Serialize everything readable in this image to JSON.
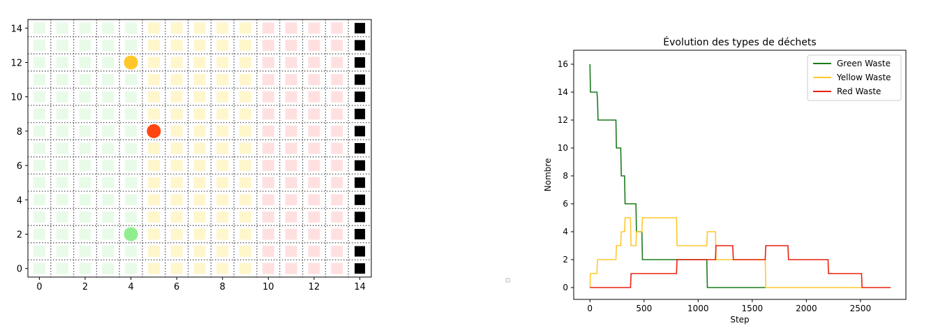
{
  "chart_data": [
    {
      "type": "scatter",
      "title": "",
      "xlabel": "",
      "ylabel": "",
      "xlim": [
        -0.5,
        14.5
      ],
      "ylim": [
        -0.5,
        14.5
      ],
      "xticks": [
        0,
        2,
        4,
        6,
        8,
        10,
        12,
        14
      ],
      "yticks": [
        0,
        2,
        4,
        6,
        8,
        10,
        12,
        14
      ],
      "grid": "dotted",
      "zones": [
        {
          "name": "green",
          "x_from": 0,
          "x_to": 4,
          "color": "#e8fbe8"
        },
        {
          "name": "yellow",
          "x_from": 5,
          "x_to": 9,
          "color": "#fff6cc"
        },
        {
          "name": "red",
          "x_from": 10,
          "x_to": 13,
          "color": "#ffe0e0"
        },
        {
          "name": "disposal",
          "x_from": 14,
          "x_to": 14,
          "color": "#000000"
        }
      ],
      "rows": 15,
      "agents": [
        {
          "x": 4,
          "y": 12,
          "color": "#ffc82a"
        },
        {
          "x": 5,
          "y": 8,
          "color": "#ff4512"
        },
        {
          "x": 4,
          "y": 2,
          "color": "#90ee90"
        }
      ]
    },
    {
      "type": "line",
      "title": "Évolution des types de déchets",
      "xlabel": "Step",
      "ylabel": "Nombre",
      "xlim": [
        -150,
        2920
      ],
      "ylim": [
        -0.85,
        17.0
      ],
      "xticks": [
        0,
        500,
        1000,
        1500,
        2000,
        2500
      ],
      "yticks": [
        0,
        2,
        4,
        6,
        8,
        10,
        12,
        14,
        16
      ],
      "legend": "top-right",
      "series": [
        {
          "name": "Green Waste",
          "color": "#1b7a1b",
          "step": true,
          "points": [
            [
              0,
              16
            ],
            [
              5,
              14
            ],
            [
              65,
              14
            ],
            [
              70,
              13.5
            ],
            [
              75,
              12
            ],
            [
              240,
              12
            ],
            [
              245,
              10
            ],
            [
              285,
              10
            ],
            [
              290,
              8
            ],
            [
              320,
              8
            ],
            [
              325,
              6
            ],
            [
              425,
              6
            ],
            [
              430,
              4
            ],
            [
              480,
              4
            ],
            [
              485,
              2
            ],
            [
              1080,
              2
            ],
            [
              1085,
              0
            ],
            [
              1620,
              0
            ]
          ]
        },
        {
          "name": "Yellow Waste",
          "color": "#ffc82a",
          "step": true,
          "points": [
            [
              0,
              0
            ],
            [
              5,
              1
            ],
            [
              65,
              1
            ],
            [
              70,
              2
            ],
            [
              240,
              2
            ],
            [
              245,
              3
            ],
            [
              285,
              3
            ],
            [
              290,
              4
            ],
            [
              320,
              4
            ],
            [
              325,
              5
            ],
            [
              375,
              5
            ],
            [
              380,
              3
            ],
            [
              425,
              3
            ],
            [
              430,
              4
            ],
            [
              480,
              4
            ],
            [
              485,
              5
            ],
            [
              800,
              5
            ],
            [
              805,
              3
            ],
            [
              1080,
              3
            ],
            [
              1085,
              4
            ],
            [
              1160,
              4
            ],
            [
              1165,
              2
            ],
            [
              1620,
              2
            ],
            [
              1625,
              0
            ],
            [
              2510,
              0
            ]
          ]
        },
        {
          "name": "Red Waste",
          "color": "#e8200f",
          "step": true,
          "points": [
            [
              0,
              0
            ],
            [
              375,
              0
            ],
            [
              380,
              1
            ],
            [
              800,
              1
            ],
            [
              805,
              2
            ],
            [
              1160,
              2
            ],
            [
              1165,
              3
            ],
            [
              1320,
              3
            ],
            [
              1325,
              2
            ],
            [
              1620,
              2
            ],
            [
              1625,
              3
            ],
            [
              1830,
              3
            ],
            [
              1835,
              2
            ],
            [
              2200,
              2
            ],
            [
              2205,
              1
            ],
            [
              2510,
              1
            ],
            [
              2515,
              0
            ],
            [
              2780,
              0
            ]
          ]
        }
      ]
    }
  ]
}
